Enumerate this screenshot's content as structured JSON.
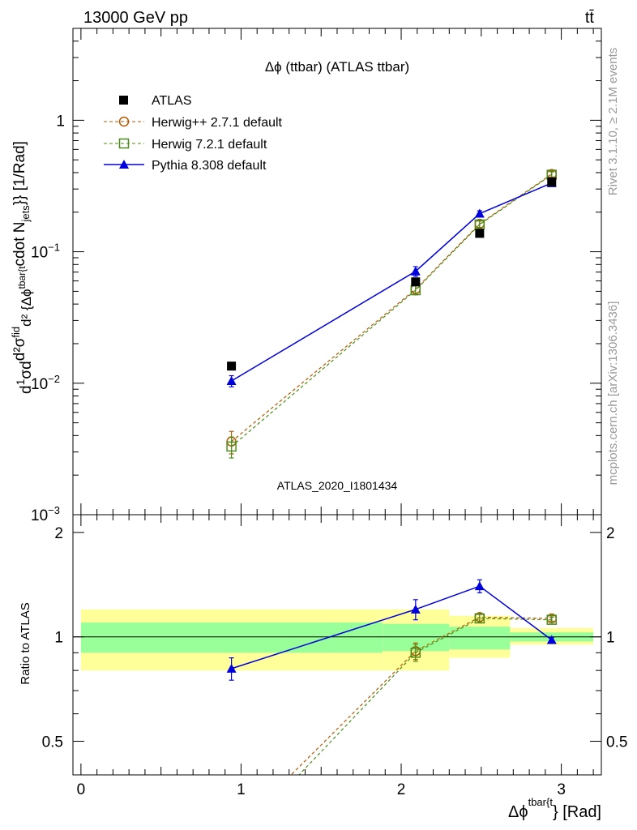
{
  "header": {
    "energy_label": "13000 GeV pp",
    "process_label": "tt̄"
  },
  "side_labels": {
    "rivet": "Rivet 3.1.10, ≥ 2.1M events",
    "mcplots": "mcplots.cern.ch [arXiv:1306.3436]"
  },
  "chart_data": [
    {
      "type": "scatter",
      "panel": "main",
      "title": "Δϕ (ttbar) (ATLAS ttbar)",
      "watermark": "ATLAS_2020_I1801434",
      "ylabel": "d1/σ d d²σ^fid / d² {Δϕ^tbar{t} cdot N_jets}} [1/Rad]",
      "ylabel_parts": {
        "a": "d",
        "b": "1",
        "c": "σ",
        "d": "d",
        "e": "d²σ",
        "f": "fid",
        "g": "d² {Δϕ",
        "h": "tbar{t",
        "i": "cdot N",
        "j": "jets",
        "k": "}} [1/Rad]"
      },
      "yscale": "log",
      "ylim": [
        0.001,
        5.0
      ],
      "xlim": [
        -0.05,
        3.25
      ],
      "y_ticks": [
        {
          "value": 0.001,
          "mant": "10",
          "exp": "−3"
        },
        {
          "value": 0.01,
          "mant": "10",
          "exp": "−2"
        },
        {
          "value": 0.1,
          "mant": "10",
          "exp": "−1"
        },
        {
          "value": 1,
          "mant": "1",
          "exp": ""
        }
      ],
      "legend_position": "top-left",
      "legend": [
        {
          "label": "ATLAS",
          "marker": "square-filled",
          "color": "#000000"
        },
        {
          "label": "Herwig++ 2.7.1 default",
          "marker": "circle-open",
          "color": "#b35900"
        },
        {
          "label": "Herwig 7.2.1 default",
          "marker": "square-open",
          "color": "#4d8c1a"
        },
        {
          "label": "Pythia 8.308 default",
          "marker": "triangle-filled",
          "color": "#0000dd"
        }
      ],
      "series": [
        {
          "name": "ATLAS",
          "x": [
            0.94,
            2.09,
            2.49,
            2.94
          ],
          "y": [
            0.0135,
            0.059,
            0.138,
            0.34
          ]
        },
        {
          "name": "Herwig++ 2.7.1 default",
          "x": [
            0.94,
            2.09,
            2.49,
            2.94
          ],
          "y": [
            0.0036,
            0.052,
            0.163,
            0.39
          ],
          "yerr": [
            0.0007,
            0.004,
            0.01,
            0.02
          ]
        },
        {
          "name": "Herwig 7.2.1 default",
          "x": [
            0.94,
            2.09,
            2.49,
            2.94
          ],
          "y": [
            0.0033,
            0.051,
            0.161,
            0.385
          ],
          "yerr": [
            0.0006,
            0.004,
            0.01,
            0.02
          ]
        },
        {
          "name": "Pythia 8.308 default",
          "x": [
            0.94,
            2.09,
            2.49,
            2.94
          ],
          "y": [
            0.0104,
            0.071,
            0.195,
            0.333
          ],
          "yerr": [
            0.001,
            0.006,
            0.01,
            0.015
          ]
        }
      ]
    },
    {
      "type": "line",
      "panel": "ratio",
      "ylabel": "Ratio to ATLAS",
      "xlabel": "Δϕ^tbar{t} [Rad]",
      "xlabel_parts": {
        "a": "Δϕ",
        "b": "tbar{t",
        "c": "} [Rad]"
      },
      "ylim": [
        0.4,
        2.25
      ],
      "xlim": [
        -0.05,
        3.25
      ],
      "x_ticks": [
        0,
        1,
        2,
        3
      ],
      "y_ticks": [
        0.5,
        1,
        2
      ],
      "uncertainty_bands": {
        "x_edges": [
          0.0,
          1.885,
          2.3,
          2.68,
          3.2
        ],
        "total_band": [
          [
            0.8,
            1.2
          ],
          [
            0.8,
            1.2
          ],
          [
            0.87,
            1.15
          ],
          [
            0.95,
            1.06
          ]
        ],
        "stat_band": [
          [
            0.9,
            1.1
          ],
          [
            0.91,
            1.09
          ],
          [
            0.92,
            1.07
          ],
          [
            0.97,
            1.03
          ]
        ]
      },
      "series": [
        {
          "name": "Herwig++ 2.7.1 default",
          "x": [
            0.94,
            2.09,
            2.49,
            2.94
          ],
          "y": [
            0.27,
            0.91,
            1.14,
            1.13
          ],
          "yerr": [
            0.0,
            0.05,
            0.03,
            0.02
          ]
        },
        {
          "name": "Herwig 7.2.1 default",
          "x": [
            0.94,
            2.09,
            2.49,
            2.94
          ],
          "y": [
            0.25,
            0.9,
            1.13,
            1.12
          ],
          "yerr": [
            0.0,
            0.05,
            0.03,
            0.02
          ]
        },
        {
          "name": "Pythia 8.308 default",
          "x": [
            0.94,
            2.09,
            2.49,
            2.94
          ],
          "y": [
            0.81,
            1.2,
            1.4,
            0.98
          ],
          "yerr": [
            0.06,
            0.08,
            0.06,
            0.015
          ]
        }
      ]
    }
  ]
}
